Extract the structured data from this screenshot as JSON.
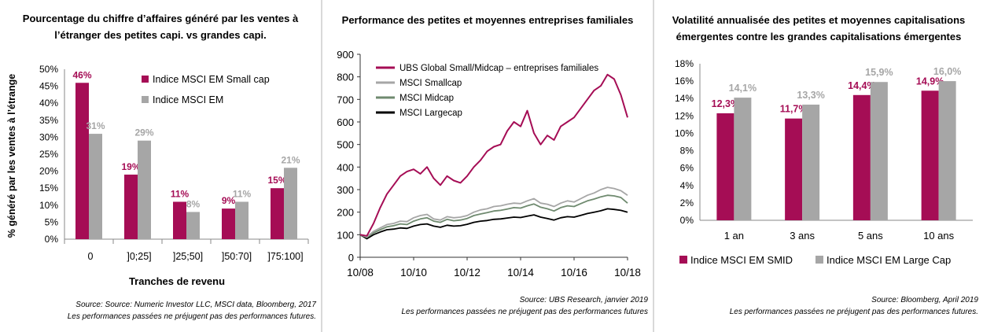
{
  "panel1": {
    "title_lines": [
      "Pourcentage du chiffre d’affaires généré par les ventes à",
      "l’étranger des petites capi. vs grandes capi."
    ],
    "source": "Source: Source: Numeric Investor LLC, MSCI data, Bloomberg, 2017",
    "disclaimer": "Les performances passées ne préjugent pas des performances futures."
  },
  "panel2": {
    "title": "Performance  des petites et moyennes entreprises familiales",
    "source": "Source: UBS Research, janvier 2019",
    "disclaimer": "Les performances passées ne préjugent pas des performances futures"
  },
  "panel3": {
    "title_lines": [
      "Volatilité annualisée des petites et moyennes capitalisations",
      "émergentes contre les grandes capitalisations émergentes"
    ],
    "source": "Source: Bloomberg, April 2019",
    "disclaimer": "Les performances passées ne préjugent pas des performances futures."
  },
  "chart_data": [
    {
      "type": "bar",
      "title": "Pourcentage du chiffre d’affaires généré par les ventes à l’étranger des petites capi. vs grandes capi.",
      "xlabel": "Tranches de revenu",
      "ylabel": "% généré par les ventes à l’étrange",
      "categories": [
        "0",
        "]0;25]",
        "]25;50]",
        "]50:70]",
        "]75:100]"
      ],
      "ylim": [
        0,
        50
      ],
      "yticks": [
        "0%",
        "5%",
        "10%",
        "15%",
        "20%",
        "25%",
        "30%",
        "35%",
        "40%",
        "45%",
        "50%"
      ],
      "legend_position": "top-right",
      "series": [
        {
          "name": "Indice MSCI EM Small cap",
          "values": [
            46,
            19,
            11,
            9,
            15
          ],
          "labels": [
            "46%",
            "19%",
            "11%",
            "9%",
            "15%"
          ],
          "color": "#a50d55"
        },
        {
          "name": "Indice MSCI EM",
          "values": [
            31,
            29,
            8,
            11,
            21
          ],
          "labels": [
            "31%",
            "29%",
            "8%",
            "11%",
            "21%"
          ],
          "color": "#a6a6a6"
        }
      ]
    },
    {
      "type": "line",
      "title": "Performance  des petites et moyennes entreprises familiales",
      "x_ticks": [
        "10/08",
        "10/10",
        "10/12",
        "10/14",
        "10/16",
        "10/18"
      ],
      "ylim": [
        0,
        900
      ],
      "yticks": [
        "0",
        "100",
        "200",
        "300",
        "400",
        "500",
        "600",
        "700",
        "800",
        "900"
      ],
      "legend_position": "top-left",
      "series": [
        {
          "name": "UBS Global Small/Midcap  – entreprises familiales",
          "color": "#a50d55",
          "points": [
            [
              "10/08",
              100
            ],
            [
              "01/09",
              95
            ],
            [
              "04/09",
              150
            ],
            [
              "07/09",
              220
            ],
            [
              "10/09",
              280
            ],
            [
              "01/10",
              320
            ],
            [
              "04/10",
              360
            ],
            [
              "07/10",
              380
            ],
            [
              "10/10",
              390
            ],
            [
              "01/11",
              370
            ],
            [
              "04/11",
              400
            ],
            [
              "07/11",
              350
            ],
            [
              "10/11",
              320
            ],
            [
              "01/12",
              360
            ],
            [
              "04/12",
              340
            ],
            [
              "07/12",
              330
            ],
            [
              "10/12",
              360
            ],
            [
              "01/13",
              400
            ],
            [
              "04/13",
              430
            ],
            [
              "07/13",
              470
            ],
            [
              "10/13",
              490
            ],
            [
              "01/14",
              500
            ],
            [
              "04/14",
              560
            ],
            [
              "07/14",
              600
            ],
            [
              "10/14",
              580
            ],
            [
              "01/15",
              650
            ],
            [
              "04/15",
              550
            ],
            [
              "07/15",
              500
            ],
            [
              "10/15",
              540
            ],
            [
              "01/16",
              520
            ],
            [
              "04/16",
              580
            ],
            [
              "07/16",
              600
            ],
            [
              "10/16",
              620
            ],
            [
              "01/17",
              660
            ],
            [
              "04/17",
              700
            ],
            [
              "07/17",
              740
            ],
            [
              "10/17",
              760
            ],
            [
              "01/18",
              810
            ],
            [
              "04/18",
              790
            ],
            [
              "07/18",
              720
            ],
            [
              "10/18",
              620
            ]
          ]
        },
        {
          "name": "MSCI Smallcap",
          "color": "#a6a6a6",
          "points": [
            [
              "10/08",
              100
            ],
            [
              "01/09",
              90
            ],
            [
              "04/09",
              115
            ],
            [
              "07/09",
              130
            ],
            [
              "10/09",
              145
            ],
            [
              "01/10",
              150
            ],
            [
              "04/10",
              160
            ],
            [
              "07/10",
              158
            ],
            [
              "10/10",
              175
            ],
            [
              "01/11",
              185
            ],
            [
              "04/11",
              190
            ],
            [
              "07/11",
              170
            ],
            [
              "10/11",
              165
            ],
            [
              "01/12",
              180
            ],
            [
              "04/12",
              175
            ],
            [
              "07/12",
              178
            ],
            [
              "10/12",
              185
            ],
            [
              "01/13",
              200
            ],
            [
              "04/13",
              210
            ],
            [
              "07/13",
              215
            ],
            [
              "10/13",
              225
            ],
            [
              "01/14",
              228
            ],
            [
              "04/14",
              235
            ],
            [
              "07/14",
              240
            ],
            [
              "10/14",
              238
            ],
            [
              "01/15",
              250
            ],
            [
              "04/15",
              260
            ],
            [
              "07/15",
              240
            ],
            [
              "10/15",
              235
            ],
            [
              "01/16",
              225
            ],
            [
              "04/16",
              240
            ],
            [
              "07/16",
              250
            ],
            [
              "10/16",
              245
            ],
            [
              "01/17",
              260
            ],
            [
              "04/17",
              275
            ],
            [
              "07/17",
              285
            ],
            [
              "10/17",
              300
            ],
            [
              "01/18",
              310
            ],
            [
              "04/18",
              305
            ],
            [
              "07/18",
              295
            ],
            [
              "10/18",
              275
            ]
          ]
        },
        {
          "name": "MSCI Midcap",
          "color": "#6f8a6f",
          "points": [
            [
              "10/08",
              100
            ],
            [
              "01/09",
              88
            ],
            [
              "04/09",
              108
            ],
            [
              "07/09",
              122
            ],
            [
              "10/09",
              135
            ],
            [
              "01/10",
              140
            ],
            [
              "04/10",
              148
            ],
            [
              "07/10",
              145
            ],
            [
              "10/10",
              160
            ],
            [
              "01/11",
              170
            ],
            [
              "04/11",
              175
            ],
            [
              "07/11",
              160
            ],
            [
              "10/11",
              155
            ],
            [
              "01/12",
              168
            ],
            [
              "04/12",
              162
            ],
            [
              "07/12",
              165
            ],
            [
              "10/12",
              172
            ],
            [
              "01/13",
              185
            ],
            [
              "04/13",
              192
            ],
            [
              "07/13",
              198
            ],
            [
              "10/13",
              205
            ],
            [
              "01/14",
              208
            ],
            [
              "04/14",
              214
            ],
            [
              "07/14",
              220
            ],
            [
              "10/14",
              218
            ],
            [
              "01/15",
              228
            ],
            [
              "04/15",
              236
            ],
            [
              "07/15",
              222
            ],
            [
              "10/15",
              215
            ],
            [
              "01/16",
              205
            ],
            [
              "04/16",
              220
            ],
            [
              "07/16",
              228
            ],
            [
              "10/16",
              225
            ],
            [
              "01/17",
              238
            ],
            [
              "04/17",
              250
            ],
            [
              "07/17",
              258
            ],
            [
              "10/17",
              268
            ],
            [
              "01/18",
              275
            ],
            [
              "04/18",
              272
            ],
            [
              "07/18",
              265
            ],
            [
              "10/18",
              240
            ]
          ]
        },
        {
          "name": "MSCI Largecap",
          "color": "#000000",
          "points": [
            [
              "10/08",
              100
            ],
            [
              "01/09",
              82
            ],
            [
              "04/09",
              100
            ],
            [
              "07/09",
              112
            ],
            [
              "10/09",
              122
            ],
            [
              "01/10",
              125
            ],
            [
              "04/10",
              130
            ],
            [
              "07/10",
              128
            ],
            [
              "10/10",
              138
            ],
            [
              "01/11",
              145
            ],
            [
              "04/11",
              148
            ],
            [
              "07/11",
              138
            ],
            [
              "10/11",
              133
            ],
            [
              "01/12",
              142
            ],
            [
              "04/12",
              138
            ],
            [
              "07/12",
              140
            ],
            [
              "10/12",
              146
            ],
            [
              "01/13",
              155
            ],
            [
              "04/13",
              160
            ],
            [
              "07/13",
              163
            ],
            [
              "10/13",
              168
            ],
            [
              "01/14",
              170
            ],
            [
              "04/14",
              174
            ],
            [
              "07/14",
              178
            ],
            [
              "10/14",
              176
            ],
            [
              "01/15",
              182
            ],
            [
              "04/15",
              188
            ],
            [
              "07/15",
              178
            ],
            [
              "10/15",
              172
            ],
            [
              "01/16",
              165
            ],
            [
              "04/16",
              175
            ],
            [
              "07/16",
              180
            ],
            [
              "10/16",
              178
            ],
            [
              "01/17",
              186
            ],
            [
              "04/17",
              194
            ],
            [
              "07/17",
              200
            ],
            [
              "10/17",
              206
            ],
            [
              "01/18",
              215
            ],
            [
              "04/18",
              212
            ],
            [
              "07/18",
              208
            ],
            [
              "10/18",
              200
            ]
          ]
        }
      ]
    },
    {
      "type": "bar",
      "title": "Volatilité annualisée des petites et moyennes capitalisations émergentes contre les grandes capitalisations émergentes",
      "categories": [
        "1 an",
        "3 ans",
        "5 ans",
        "10 ans"
      ],
      "ylim": [
        0,
        18
      ],
      "yticks": [
        "0%",
        "2%",
        "4%",
        "6%",
        "8%",
        "10%",
        "12%",
        "14%",
        "16%",
        "18%"
      ],
      "legend_position": "bottom",
      "series": [
        {
          "name": "Indice MSCI EM SMID",
          "values": [
            12.3,
            11.7,
            14.4,
            14.9
          ],
          "labels": [
            "12,3%",
            "11,7%",
            "14,4%",
            "14,9%"
          ],
          "color": "#a50d55"
        },
        {
          "name": "Indice MSCI EM Large Cap",
          "values": [
            14.1,
            13.3,
            15.9,
            16.0
          ],
          "labels": [
            "14,1%",
            "13,3%",
            "15,9%",
            "16,0%"
          ],
          "color": "#a6a6a6"
        }
      ]
    }
  ]
}
